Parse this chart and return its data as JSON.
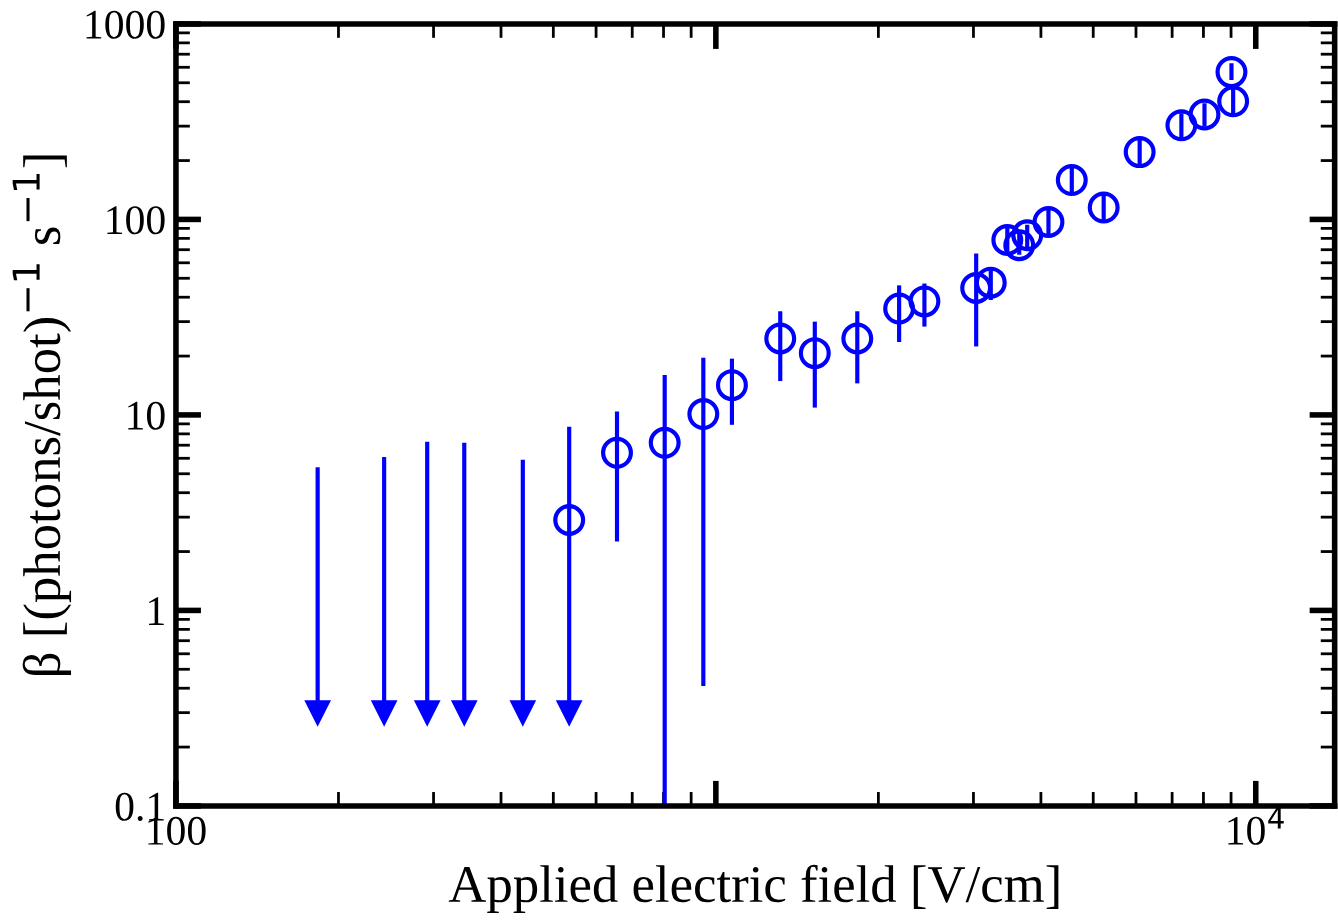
{
  "chart_data": {
    "type": "scatter",
    "xlabel": "Applied electric field [V/cm]",
    "ylabel": "β [(photons/shot)$^{−1}$ s$^{−1}$]",
    "log": "xy",
    "grid": false,
    "legend": false,
    "xlim": [
      100,
      14000
    ],
    "xticks": [
      100,
      {
        "value": 1000,
        "label": null
      },
      {
        "value": 10000,
        "label": "10$^{4}$"
      }
    ],
    "ylim": [
      0.1,
      1000
    ],
    "yticks": [
      0.1,
      1,
      10,
      100,
      1000
    ],
    "series": [
      {
        "color": "#0000ff",
        "marker": "circle",
        "x": [
          535,
          656,
          804,
          948,
          1071,
          1316,
          1525,
          1828,
          2185,
          2434,
          3035,
          3230,
          3466,
          3647,
          3773,
          4131,
          4563,
          5228,
          6095,
          7282,
          8036,
          9081,
          9016
        ],
        "values": [
          2.9,
          6.4,
          7.2,
          10.1,
          14.2,
          24.6,
          20.7,
          24.6,
          35,
          38.1,
          44.6,
          47.5,
          78.5,
          73.8,
          83,
          97,
          159,
          115,
          221,
          303,
          344,
          402,
          567
        ],
        "errors": [
          [
            0.3,
            8.7
          ],
          [
            2.25,
            10.4
          ],
          [
            0.1,
            16
          ],
          [
            0.41,
            19.6
          ],
          [
            8.9,
            19.4
          ],
          [
            14.9,
            33.9
          ],
          [
            10.9,
            30
          ],
          [
            14.5,
            33.9
          ],
          [
            23.6,
            46
          ],
          [
            28.3,
            47
          ],
          [
            22.4,
            67
          ],
          [
            38.7,
            55
          ],
          [
            66,
            92
          ],
          [
            66,
            86
          ],
          [
            71,
            94
          ],
          [
            84,
            114
          ],
          [
            136,
            186
          ],
          [
            96,
            134
          ],
          [
            189,
            259
          ],
          [
            259,
            349
          ],
          [
            299,
            393
          ],
          [
            349,
            467
          ],
          [
            517,
            630
          ]
        ]
      },
      {
        "color": "#0000ff",
        "marker": "triangle",
        "x": [
          183,
          243,
          292,
          342,
          439,
          535
        ],
        "values": [
          0.3,
          0.3,
          0.3,
          0.3,
          0.3,
          0.3
        ],
        "errors": [
          [
            0.3,
            5.4
          ],
          [
            0.3,
            6.1
          ],
          [
            0.3,
            7.3
          ],
          [
            0.3,
            7.2
          ],
          [
            0.3,
            5.9
          ],
          null
        ]
      }
    ]
  }
}
